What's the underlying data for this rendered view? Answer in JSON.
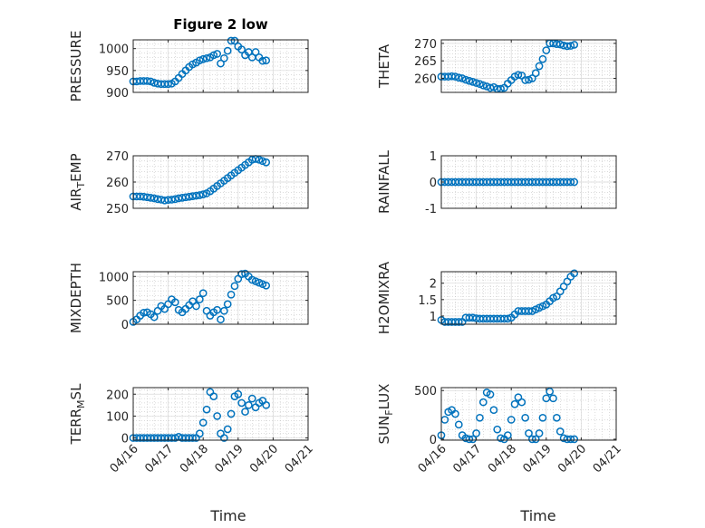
{
  "chart_data": [
    {
      "type": "scatter",
      "title": "Figure 2 low",
      "ylabel": "PRESSURE",
      "ylim": [
        900,
        1020
      ],
      "yticks": [
        900,
        950,
        1000
      ],
      "ytick_labels": [
        "900",
        "950",
        "1000"
      ],
      "xlim": [
        0,
        5
      ],
      "grid": true,
      "series": [
        {
          "x": [
            0,
            0.1,
            0.2,
            0.3,
            0.4,
            0.5,
            0.6,
            0.7,
            0.8,
            0.9,
            1.0,
            1.1,
            1.2,
            1.3,
            1.4,
            1.5,
            1.6,
            1.7,
            1.8,
            1.9,
            2.0,
            2.1,
            2.2,
            2.3,
            2.4,
            2.5,
            2.6,
            2.7,
            2.8,
            2.9,
            3.0,
            3.1,
            3.2,
            3.3,
            3.4,
            3.5,
            3.6,
            3.7,
            3.8
          ],
          "y": [
            925,
            925,
            926,
            926,
            926,
            925,
            922,
            920,
            919,
            919,
            919,
            920,
            925,
            933,
            942,
            950,
            958,
            964,
            968,
            973,
            976,
            978,
            980,
            985,
            988,
            966,
            978,
            995,
            1018,
            1018,
            1005,
            998,
            985,
            992,
            980,
            992,
            980,
            972,
            973
          ]
        }
      ]
    },
    {
      "type": "scatter",
      "title": "",
      "ylabel": "THETA",
      "ylim": [
        256,
        271
      ],
      "yticks": [
        260,
        265,
        270
      ],
      "ytick_labels": [
        "260",
        "265",
        "270"
      ],
      "xlim": [
        0,
        5
      ],
      "grid": true,
      "series": [
        {
          "x": [
            0,
            0.1,
            0.2,
            0.3,
            0.4,
            0.5,
            0.6,
            0.7,
            0.8,
            0.9,
            1.0,
            1.1,
            1.2,
            1.3,
            1.4,
            1.5,
            1.6,
            1.7,
            1.8,
            1.9,
            2.0,
            2.1,
            2.2,
            2.3,
            2.4,
            2.5,
            2.6,
            2.7,
            2.8,
            2.9,
            3.0,
            3.1,
            3.2,
            3.3,
            3.4,
            3.5,
            3.6,
            3.7,
            3.8
          ],
          "y": [
            260.5,
            260.5,
            260.5,
            260.6,
            260.5,
            260.2,
            260,
            259.6,
            259.3,
            259,
            258.7,
            258.4,
            258,
            257.7,
            257.3,
            257.5,
            257,
            257,
            257.3,
            258.5,
            259.5,
            260.5,
            261,
            260.8,
            259.5,
            259.6,
            260,
            261.5,
            263.5,
            265.5,
            268,
            270,
            270,
            269.8,
            269.7,
            269.4,
            269.2,
            269.3,
            269.6
          ]
        }
      ]
    },
    {
      "type": "scatter",
      "title": "",
      "ylabel": "AIR_TEMP",
      "ylabel_main": "AIR",
      "ylabel_sub": "T",
      "ylabel_rest": "EMP",
      "ylim": [
        250,
        270
      ],
      "yticks": [
        250,
        260,
        270
      ],
      "ytick_labels": [
        "250",
        "260",
        "270"
      ],
      "xlim": [
        0,
        5
      ],
      "grid": true,
      "series": [
        {
          "x": [
            0,
            0.1,
            0.2,
            0.3,
            0.4,
            0.5,
            0.6,
            0.7,
            0.8,
            0.9,
            1.0,
            1.1,
            1.2,
            1.3,
            1.4,
            1.5,
            1.6,
            1.7,
            1.8,
            1.9,
            2.0,
            2.1,
            2.2,
            2.3,
            2.4,
            2.5,
            2.6,
            2.7,
            2.8,
            2.9,
            3.0,
            3.1,
            3.2,
            3.3,
            3.4,
            3.5,
            3.6,
            3.7,
            3.8
          ],
          "y": [
            254.5,
            254.5,
            254.5,
            254.4,
            254.2,
            254,
            253.8,
            253.5,
            253.3,
            253,
            253.2,
            253.3,
            253.5,
            253.8,
            254,
            254.2,
            254.4,
            254.6,
            254.8,
            255,
            255.3,
            255.7,
            256.5,
            257.5,
            258.5,
            259.5,
            260.5,
            261.5,
            262.5,
            263.5,
            264.5,
            265.5,
            266.5,
            267.5,
            268.5,
            268.8,
            268.5,
            268,
            267.5
          ]
        }
      ]
    },
    {
      "type": "scatter",
      "title": "",
      "ylabel": "RAINFALL",
      "ylim": [
        -1,
        1
      ],
      "yticks": [
        -1,
        0,
        1
      ],
      "ytick_labels": [
        "-1",
        "0",
        "1"
      ],
      "xlim": [
        0,
        5
      ],
      "grid": true,
      "series": [
        {
          "x": [
            0,
            0.1,
            0.2,
            0.3,
            0.4,
            0.5,
            0.6,
            0.7,
            0.8,
            0.9,
            1.0,
            1.1,
            1.2,
            1.3,
            1.4,
            1.5,
            1.6,
            1.7,
            1.8,
            1.9,
            2.0,
            2.1,
            2.2,
            2.3,
            2.4,
            2.5,
            2.6,
            2.7,
            2.8,
            2.9,
            3.0,
            3.1,
            3.2,
            3.3,
            3.4,
            3.5,
            3.6,
            3.7,
            3.8
          ],
          "y": [
            0,
            0,
            0,
            0,
            0,
            0,
            0,
            0,
            0,
            0,
            0,
            0,
            0,
            0,
            0,
            0,
            0,
            0,
            0,
            0,
            0,
            0,
            0,
            0,
            0,
            0,
            0,
            0,
            0,
            0,
            0,
            0,
            0,
            0,
            0,
            0,
            0,
            0,
            0
          ]
        }
      ]
    },
    {
      "type": "scatter",
      "title": "",
      "ylabel": "MIXDEPTH",
      "ylim": [
        0,
        1100
      ],
      "yticks": [
        0,
        500,
        1000
      ],
      "ytick_labels": [
        "0",
        "500",
        "1000"
      ],
      "xlim": [
        0,
        5
      ],
      "grid": true,
      "series": [
        {
          "x": [
            0,
            0.1,
            0.2,
            0.3,
            0.4,
            0.5,
            0.6,
            0.7,
            0.8,
            0.9,
            1.0,
            1.1,
            1.2,
            1.3,
            1.4,
            1.5,
            1.6,
            1.7,
            1.8,
            1.9,
            2.0,
            2.1,
            2.2,
            2.3,
            2.4,
            2.5,
            2.6,
            2.7,
            2.8,
            2.9,
            3.0,
            3.1,
            3.2,
            3.3,
            3.4,
            3.5,
            3.6,
            3.7,
            3.8
          ],
          "y": [
            50,
            100,
            180,
            240,
            250,
            210,
            150,
            280,
            380,
            320,
            420,
            520,
            460,
            300,
            250,
            320,
            400,
            480,
            380,
            520,
            650,
            280,
            180,
            250,
            300,
            100,
            280,
            420,
            620,
            800,
            950,
            1050,
            1060,
            1000,
            930,
            900,
            870,
            840,
            810
          ]
        }
      ]
    },
    {
      "type": "scatter",
      "title": "",
      "ylabel": "H2OMIXRA",
      "ylim": [
        0.75,
        2.35
      ],
      "yticks": [
        1,
        1.5,
        2
      ],
      "ytick_labels": [
        "1",
        "1.5",
        "2"
      ],
      "xlim": [
        0,
        5
      ],
      "grid": true,
      "series": [
        {
          "x": [
            0,
            0.1,
            0.2,
            0.3,
            0.4,
            0.5,
            0.6,
            0.7,
            0.8,
            0.9,
            1.0,
            1.1,
            1.2,
            1.3,
            1.4,
            1.5,
            1.6,
            1.7,
            1.8,
            1.9,
            2.0,
            2.1,
            2.2,
            2.3,
            2.4,
            2.5,
            2.6,
            2.7,
            2.8,
            2.9,
            3.0,
            3.1,
            3.2,
            3.3,
            3.4,
            3.5,
            3.6,
            3.7,
            3.8
          ],
          "y": [
            0.88,
            0.82,
            0.82,
            0.82,
            0.82,
            0.82,
            0.82,
            0.95,
            0.95,
            0.95,
            0.93,
            0.92,
            0.92,
            0.92,
            0.92,
            0.92,
            0.92,
            0.92,
            0.92,
            0.92,
            0.95,
            1.05,
            1.15,
            1.15,
            1.15,
            1.15,
            1.15,
            1.2,
            1.25,
            1.3,
            1.35,
            1.45,
            1.55,
            1.6,
            1.75,
            1.9,
            2.05,
            2.2,
            2.3
          ]
        }
      ]
    },
    {
      "type": "scatter",
      "title": "",
      "ylabel": "TERR_MSL",
      "ylabel_main": "TERR",
      "ylabel_sub": "M",
      "ylabel_rest": "SL",
      "ylim": [
        -10,
        230
      ],
      "yticks": [
        0,
        100,
        200
      ],
      "ytick_labels": [
        "0",
        "100",
        "200"
      ],
      "xlim": [
        0,
        5
      ],
      "grid": true,
      "series": [
        {
          "x": [
            0,
            0.1,
            0.2,
            0.3,
            0.4,
            0.5,
            0.6,
            0.7,
            0.8,
            0.9,
            1.0,
            1.1,
            1.2,
            1.3,
            1.4,
            1.5,
            1.6,
            1.7,
            1.8,
            1.9,
            2.0,
            2.1,
            2.2,
            2.3,
            2.4,
            2.5,
            2.6,
            2.7,
            2.8,
            2.9,
            3.0,
            3.1,
            3.2,
            3.3,
            3.4,
            3.5,
            3.6,
            3.7,
            3.8
          ],
          "y": [
            0,
            0,
            0,
            0,
            0,
            0,
            0,
            0,
            0,
            0,
            0,
            0,
            0,
            5,
            0,
            0,
            0,
            0,
            0,
            20,
            70,
            130,
            210,
            190,
            100,
            20,
            0,
            40,
            110,
            190,
            200,
            160,
            120,
            150,
            180,
            140,
            160,
            170,
            150
          ]
        }
      ]
    },
    {
      "type": "scatter",
      "title": "",
      "ylabel": "SUN_FLUX",
      "ylabel_main": "SUN",
      "ylabel_sub": "F",
      "ylabel_rest": "LUX",
      "ylim": [
        -10,
        530
      ],
      "yticks": [
        0,
        500
      ],
      "ytick_labels": [
        "0",
        "500"
      ],
      "xlim": [
        0,
        5
      ],
      "grid": true,
      "series": [
        {
          "x": [
            0,
            0.1,
            0.2,
            0.3,
            0.4,
            0.5,
            0.6,
            0.7,
            0.8,
            0.9,
            1.0,
            1.1,
            1.2,
            1.3,
            1.4,
            1.5,
            1.6,
            1.7,
            1.8,
            1.9,
            2.0,
            2.1,
            2.2,
            2.3,
            2.4,
            2.5,
            2.6,
            2.7,
            2.8,
            2.9,
            3.0,
            3.1,
            3.2,
            3.3,
            3.4,
            3.5,
            3.6,
            3.7,
            3.8
          ],
          "y": [
            40,
            200,
            280,
            300,
            260,
            150,
            40,
            10,
            0,
            0,
            60,
            220,
            380,
            480,
            460,
            300,
            100,
            10,
            0,
            40,
            200,
            360,
            430,
            380,
            220,
            60,
            0,
            0,
            60,
            220,
            420,
            490,
            420,
            220,
            80,
            10,
            0,
            0,
            0
          ]
        }
      ]
    }
  ],
  "xticks": [
    0,
    1,
    2,
    3,
    4,
    5
  ],
  "xtick_labels": [
    "04/16",
    "04/17",
    "04/18",
    "04/19",
    "04/20",
    "04/21"
  ],
  "xlabel": "Time",
  "marker_color": "#0072BD"
}
